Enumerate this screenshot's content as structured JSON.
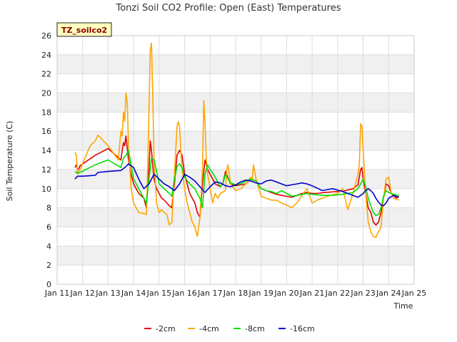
{
  "chart_data": {
    "type": "line",
    "title": "Tonzi Soil CO2 Profile: Open (East) Temperatures",
    "xlabel": "Time",
    "ylabel": "Soil Temperature (C)",
    "badge": "TZ_soilco2",
    "xlim": [
      11,
      25
    ],
    "ylim": [
      0,
      26
    ],
    "x_ticks": [
      {
        "value": 11,
        "label": "Jan 11"
      },
      {
        "value": 12,
        "label": "Jan 12"
      },
      {
        "value": 13,
        "label": "Jan 13"
      },
      {
        "value": 14,
        "label": "Jan 14"
      },
      {
        "value": 15,
        "label": "Jan 15"
      },
      {
        "value": 16,
        "label": "Jan 16"
      },
      {
        "value": 17,
        "label": "Jan 17"
      },
      {
        "value": 18,
        "label": "Jan 18"
      },
      {
        "value": 19,
        "label": "Jan 19"
      },
      {
        "value": 20,
        "label": "Jan 20"
      },
      {
        "value": 21,
        "label": "Jan 21"
      },
      {
        "value": 22,
        "label": "Jan 22"
      },
      {
        "value": 23,
        "label": "Jan 23"
      },
      {
        "value": 24,
        "label": "Jan 24"
      },
      {
        "value": 25,
        "label": "Jan 25"
      }
    ],
    "y_ticks": [
      0,
      2,
      4,
      6,
      8,
      10,
      12,
      14,
      16,
      18,
      20,
      22,
      24,
      26
    ],
    "grid": true,
    "legend_position": "bottom",
    "series": [
      {
        "name": "-2cm",
        "color": "#e00000",
        "x": [
          11.7,
          11.75,
          11.8,
          11.85,
          11.9,
          12.5,
          13.0,
          13.5,
          13.55,
          13.6,
          13.65,
          13.7,
          13.8,
          13.9,
          14.0,
          14.2,
          14.4,
          14.5,
          14.6,
          14.65,
          14.7,
          14.8,
          14.9,
          15.0,
          15.1,
          15.2,
          15.3,
          15.4,
          15.5,
          15.6,
          15.7,
          15.8,
          15.9,
          16.0,
          16.1,
          16.2,
          16.3,
          16.4,
          16.5,
          16.6,
          16.7,
          16.8,
          16.9,
          17.0,
          17.2,
          17.4,
          17.5,
          17.6,
          17.8,
          18.0,
          18.2,
          18.4,
          18.5,
          18.6,
          18.8,
          19.0,
          19.2,
          19.4,
          19.6,
          19.8,
          20.0,
          20.2,
          20.4,
          20.6,
          20.8,
          21.0,
          21.2,
          21.5,
          22.0,
          22.3,
          22.6,
          22.8,
          22.9,
          22.95,
          23.0,
          23.1,
          23.2,
          23.3,
          23.4,
          23.5,
          23.6,
          23.7,
          23.8,
          23.9,
          24.0,
          24.1,
          24.2,
          24.3,
          24.4
        ],
        "y": [
          12.2,
          12.5,
          12.0,
          12.1,
          12.4,
          13.5,
          14.2,
          13.0,
          14.0,
          14.8,
          14.5,
          15.5,
          13.0,
          11.5,
          10.5,
          9.5,
          9.0,
          8.0,
          12.0,
          15.0,
          14.0,
          11.0,
          10.0,
          9.5,
          9.0,
          8.8,
          8.5,
          8.2,
          8.0,
          10.5,
          13.5,
          14.0,
          13.5,
          11.5,
          10.5,
          9.5,
          9.0,
          8.5,
          7.5,
          7.0,
          10.5,
          13.0,
          12.0,
          11.5,
          10.5,
          10.2,
          10.5,
          11.8,
          10.5,
          10.3,
          10.4,
          10.5,
          10.8,
          11.0,
          10.8,
          10.0,
          9.8,
          9.6,
          9.4,
          9.3,
          9.2,
          9.1,
          9.3,
          9.5,
          9.6,
          9.5,
          9.5,
          9.6,
          9.7,
          9.8,
          10.0,
          10.4,
          12.0,
          12.2,
          11.0,
          9.5,
          8.0,
          7.5,
          6.5,
          6.2,
          6.5,
          7.5,
          9.0,
          10.5,
          10.3,
          9.5,
          9.3,
          9.0,
          9.2
        ]
      },
      {
        "name": "-4cm",
        "color": "#ffa500",
        "x": [
          11.7,
          11.75,
          11.8,
          11.85,
          11.9,
          12.3,
          12.5,
          12.6,
          13.0,
          13.4,
          13.5,
          13.55,
          13.6,
          13.65,
          13.7,
          13.75,
          13.8,
          13.9,
          14.0,
          14.2,
          14.4,
          14.5,
          14.55,
          14.6,
          14.65,
          14.7,
          14.75,
          14.8,
          14.9,
          15.0,
          15.1,
          15.2,
          15.3,
          15.4,
          15.5,
          15.6,
          15.7,
          15.75,
          15.8,
          15.85,
          15.9,
          16.0,
          16.1,
          16.2,
          16.3,
          16.4,
          16.5,
          16.6,
          16.7,
          16.75,
          16.8,
          16.85,
          16.9,
          17.0,
          17.1,
          17.2,
          17.3,
          17.4,
          17.6,
          17.65,
          17.7,
          17.8,
          18.0,
          18.2,
          18.4,
          18.6,
          18.65,
          18.7,
          18.8,
          19.0,
          19.2,
          19.4,
          19.6,
          19.8,
          20.0,
          20.2,
          20.4,
          20.6,
          20.8,
          21.0,
          21.2,
          21.6,
          22.0,
          22.2,
          22.4,
          22.6,
          22.8,
          22.85,
          22.9,
          22.95,
          23.0,
          23.1,
          23.2,
          23.3,
          23.4,
          23.5,
          23.6,
          23.7,
          23.8,
          23.9,
          24.0,
          24.1,
          24.2,
          24.3,
          24.4
        ],
        "y": [
          13.8,
          13.5,
          11.5,
          11.8,
          12.0,
          14.5,
          15.0,
          15.6,
          14.5,
          13.0,
          16.0,
          15.5,
          18.0,
          17.0,
          20.0,
          19.0,
          14.5,
          10.0,
          8.5,
          7.5,
          7.4,
          7.3,
          12.0,
          18.0,
          24.5,
          25.2,
          20.0,
          13.0,
          8.5,
          7.5,
          7.8,
          7.5,
          7.3,
          6.2,
          6.5,
          11.5,
          16.5,
          17.0,
          16.5,
          14.0,
          12.0,
          10.0,
          8.5,
          7.5,
          6.5,
          6.0,
          5.0,
          7.0,
          12.0,
          19.2,
          17.0,
          13.0,
          11.5,
          10.0,
          8.5,
          9.5,
          9.0,
          9.5,
          9.8,
          12.0,
          12.5,
          10.5,
          9.8,
          10.0,
          10.5,
          11.2,
          10.8,
          12.5,
          11.0,
          9.2,
          9.0,
          8.8,
          8.8,
          8.5,
          8.3,
          8.0,
          8.5,
          9.3,
          10.0,
          8.5,
          8.8,
          9.2,
          9.5,
          10.0,
          7.8,
          9.5,
          11.5,
          12.5,
          16.8,
          16.5,
          14.0,
          9.5,
          6.5,
          5.5,
          5.0,
          4.9,
          5.5,
          6.0,
          9.0,
          11.0,
          11.2,
          9.5,
          9.0,
          8.9,
          8.8
        ]
      },
      {
        "name": "-8cm",
        "color": "#00e000",
        "x": [
          11.7,
          11.8,
          11.9,
          12.5,
          13.0,
          13.5,
          13.6,
          13.7,
          13.8,
          13.9,
          14.0,
          14.2,
          14.5,
          14.6,
          14.7,
          14.8,
          14.9,
          15.0,
          15.2,
          15.4,
          15.5,
          15.6,
          15.7,
          15.8,
          15.9,
          16.0,
          16.2,
          16.4,
          16.5,
          16.6,
          16.7,
          16.8,
          16.9,
          17.0,
          17.2,
          17.4,
          17.5,
          17.6,
          17.8,
          18.0,
          18.2,
          18.4,
          18.6,
          18.8,
          19.0,
          19.2,
          19.4,
          19.6,
          19.8,
          20.0,
          20.2,
          20.4,
          20.6,
          20.8,
          21.0,
          21.4,
          21.8,
          22.2,
          22.6,
          22.8,
          22.9,
          23.0,
          23.1,
          23.2,
          23.3,
          23.4,
          23.5,
          23.6,
          23.7,
          23.8,
          23.9,
          24.0,
          24.2,
          24.4
        ],
        "y": [
          11.8,
          11.6,
          11.7,
          12.5,
          13.0,
          12.2,
          13.2,
          13.5,
          14.0,
          12.5,
          11.0,
          10.0,
          8.5,
          11.0,
          13.2,
          13.0,
          11.8,
          10.5,
          10.0,
          9.5,
          9.2,
          11.0,
          12.3,
          12.6,
          12.2,
          11.2,
          10.5,
          10.0,
          9.5,
          9.0,
          8.0,
          11.5,
          12.5,
          12.0,
          11.2,
          10.2,
          10.5,
          11.5,
          10.6,
          10.4,
          10.5,
          10.8,
          11.0,
          10.8,
          10.0,
          9.8,
          9.7,
          9.5,
          9.8,
          9.5,
          9.2,
          9.3,
          9.4,
          9.5,
          9.4,
          9.3,
          9.3,
          9.4,
          9.6,
          10.0,
          10.5,
          11.0,
          10.2,
          9.0,
          8.2,
          7.5,
          7.2,
          7.3,
          8.0,
          9.2,
          9.8,
          9.6,
          9.4,
          9.3
        ]
      },
      {
        "name": "-16cm",
        "color": "#0000cc",
        "x": [
          11.7,
          11.8,
          12.0,
          12.5,
          12.6,
          13.0,
          13.5,
          13.7,
          13.8,
          14.0,
          14.2,
          14.4,
          14.6,
          14.8,
          15.0,
          15.2,
          15.4,
          15.6,
          15.8,
          16.0,
          16.2,
          16.4,
          16.6,
          16.8,
          17.0,
          17.2,
          17.4,
          17.6,
          17.8,
          18.0,
          18.2,
          18.4,
          18.6,
          18.8,
          19.0,
          19.2,
          19.4,
          19.6,
          19.8,
          20.0,
          20.2,
          20.4,
          20.6,
          20.8,
          21.0,
          21.4,
          21.8,
          22.2,
          22.6,
          22.8,
          23.0,
          23.1,
          23.2,
          23.3,
          23.4,
          23.5,
          23.6,
          23.7,
          23.8,
          23.9,
          24.0,
          24.2,
          24.4
        ],
        "y": [
          11.0,
          11.3,
          11.3,
          11.4,
          11.7,
          11.8,
          11.9,
          12.3,
          12.6,
          12.2,
          11.0,
          10.0,
          10.5,
          11.5,
          11.0,
          10.5,
          10.2,
          9.8,
          10.5,
          11.5,
          11.2,
          10.8,
          10.2,
          9.6,
          10.2,
          10.7,
          10.6,
          10.3,
          10.2,
          10.4,
          10.7,
          10.9,
          10.8,
          10.6,
          10.5,
          10.8,
          10.9,
          10.7,
          10.5,
          10.3,
          10.4,
          10.5,
          10.6,
          10.5,
          10.3,
          9.8,
          10.0,
          9.7,
          9.3,
          9.1,
          9.5,
          9.8,
          10.0,
          9.8,
          9.5,
          9.0,
          8.6,
          8.3,
          8.2,
          8.5,
          9.0,
          9.3,
          9.1
        ]
      }
    ]
  }
}
